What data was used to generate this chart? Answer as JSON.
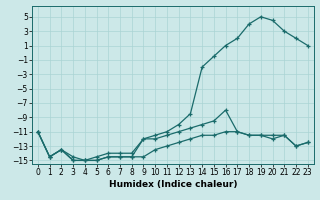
{
  "xlabel": "Humidex (Indice chaleur)",
  "bg_color": "#cce8e8",
  "line_color": "#1a6b6b",
  "xlim": [
    -0.5,
    23.5
  ],
  "ylim": [
    -15.5,
    6.5
  ],
  "xticks": [
    0,
    1,
    2,
    3,
    4,
    5,
    6,
    7,
    8,
    9,
    10,
    11,
    12,
    13,
    14,
    15,
    16,
    17,
    18,
    19,
    20,
    21,
    22,
    23
  ],
  "yticks": [
    5,
    3,
    1,
    -1,
    -3,
    -5,
    -7,
    -9,
    -11,
    -13,
    -15
  ],
  "curve1_x": [
    0,
    1,
    2,
    3,
    4,
    5,
    6,
    7,
    8,
    9,
    10,
    11,
    12,
    13,
    14,
    15,
    16,
    17,
    18,
    19,
    20,
    21,
    22,
    23
  ],
  "curve1_y": [
    -11,
    -14.5,
    -13.5,
    -15,
    -15,
    -15,
    -14.5,
    -14.5,
    -14.5,
    -12,
    -11.5,
    -11,
    -10,
    -8.5,
    -2,
    -0.5,
    1,
    2,
    4,
    5,
    4.5,
    3,
    2,
    1
  ],
  "curve2_x": [
    0,
    1,
    2,
    3,
    4,
    5,
    6,
    7,
    8,
    9,
    10,
    11,
    12,
    13,
    14,
    15,
    16,
    17,
    18,
    19,
    20,
    21,
    22,
    23
  ],
  "curve2_y": [
    -11,
    -14.5,
    -13.5,
    -15,
    -15,
    -14.5,
    -14,
    -14,
    -14,
    -12,
    -12,
    -11.5,
    -11,
    -10.5,
    -10,
    -9.5,
    -8,
    -11,
    -11.5,
    -11.5,
    -11.5,
    -11.5,
    -13,
    -12.5
  ],
  "curve3_x": [
    0,
    1,
    2,
    3,
    4,
    5,
    6,
    7,
    8,
    9,
    10,
    11,
    12,
    13,
    14,
    15,
    16,
    17,
    18,
    19,
    20,
    21,
    22,
    23
  ],
  "curve3_y": [
    -11,
    -14.5,
    -13.5,
    -14.5,
    -15,
    -15,
    -14.5,
    -14.5,
    -14.5,
    -14.5,
    -13.5,
    -13,
    -12.5,
    -12,
    -11.5,
    -11.5,
    -11,
    -11,
    -11.5,
    -11.5,
    -12,
    -11.5,
    -13,
    -12.5
  ],
  "grid_color": "#aad4d4",
  "tick_fontsize": 5.5,
  "xlabel_fontsize": 6.5
}
